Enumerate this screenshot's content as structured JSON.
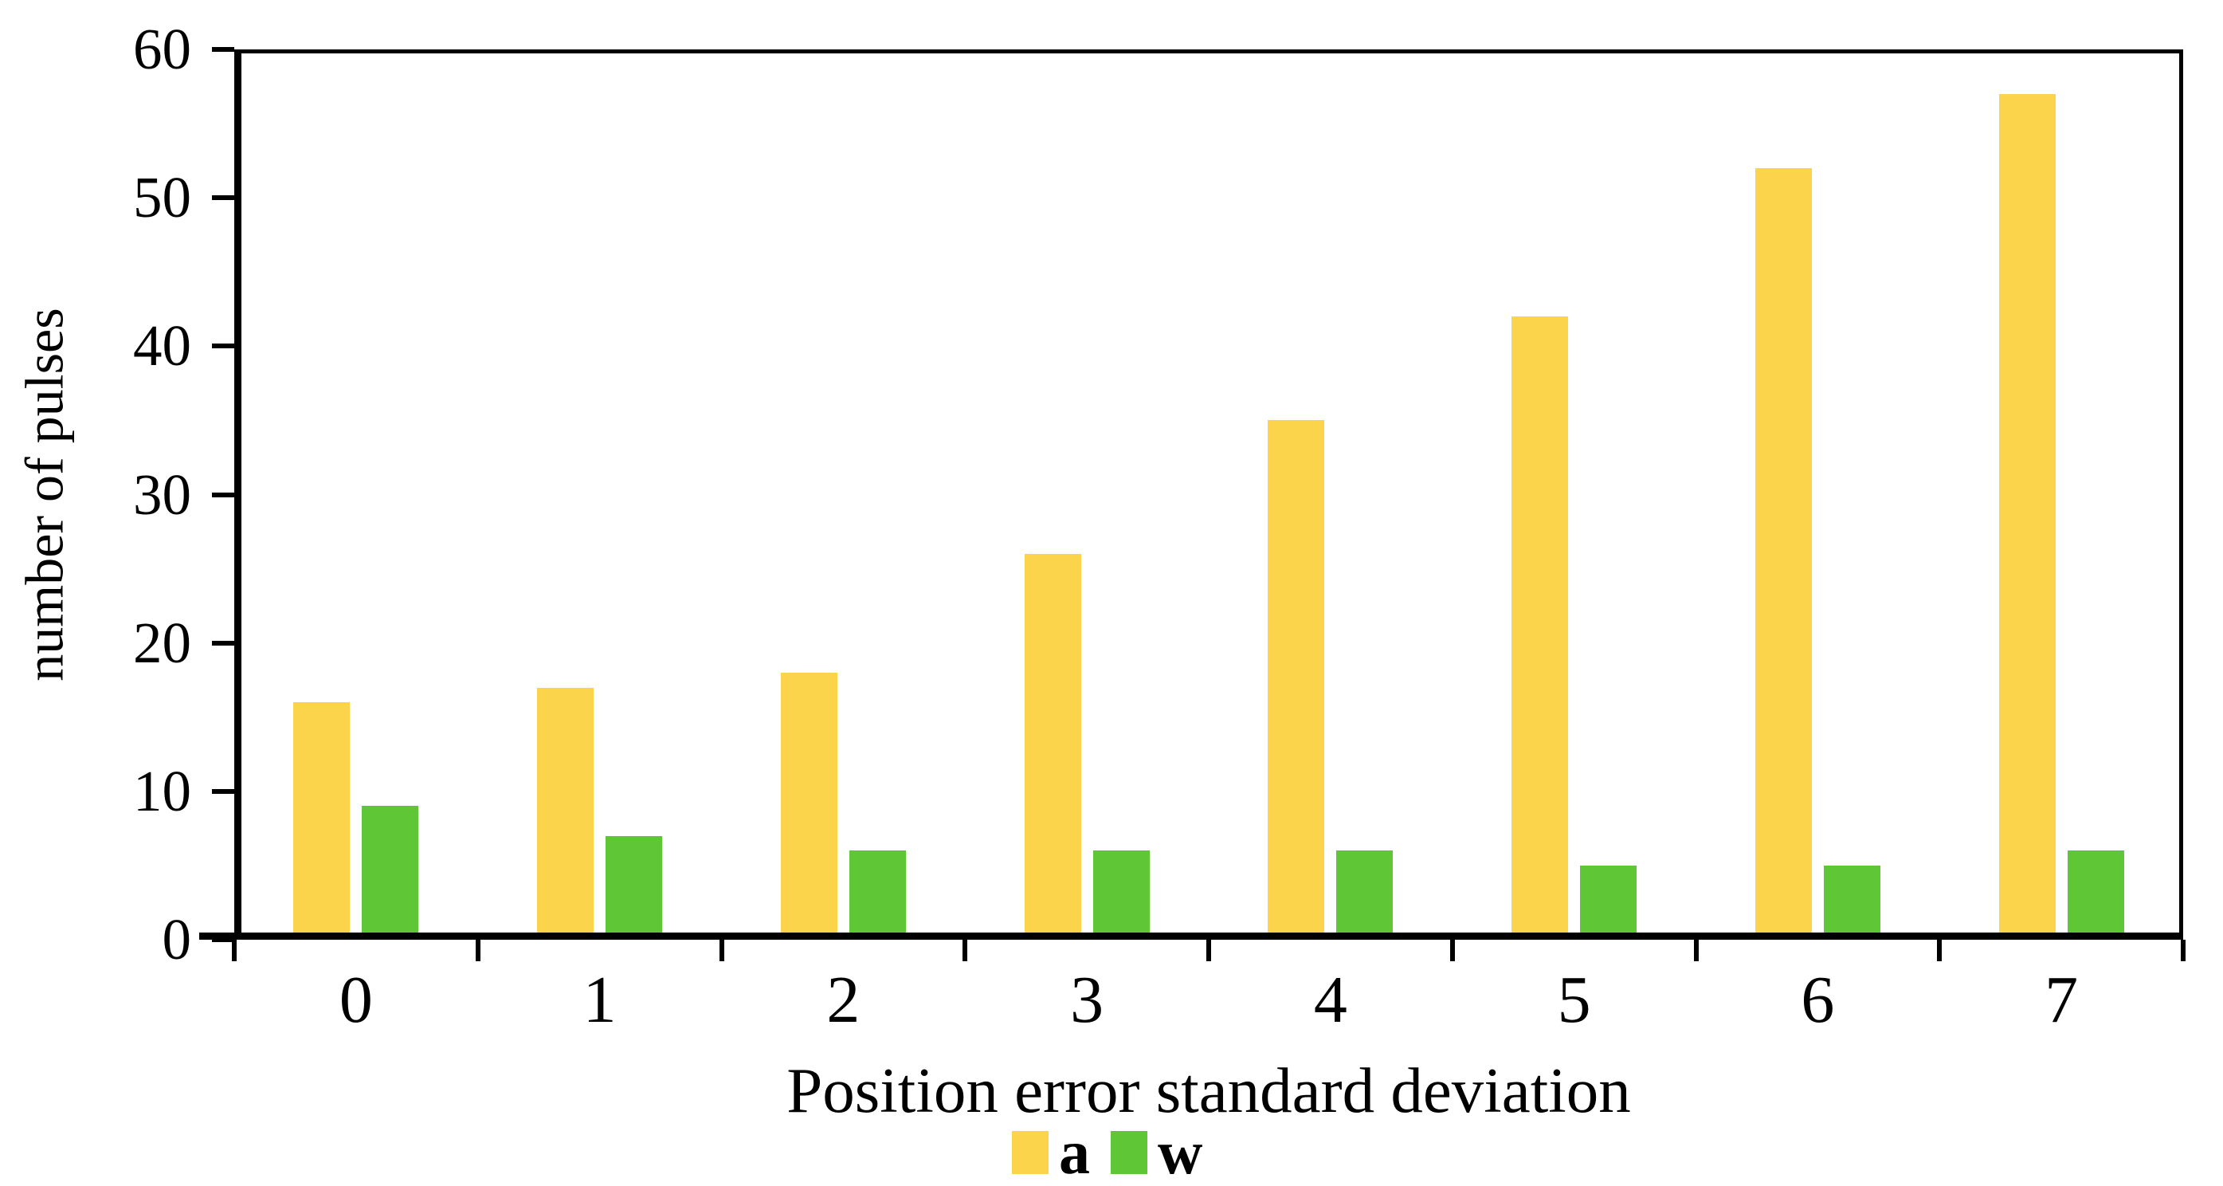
{
  "chart_data": {
    "type": "bar",
    "title": "",
    "xlabel": "Position error standard deviation",
    "ylabel": "number of pulses",
    "categories": [
      "0",
      "1",
      "2",
      "3",
      "4",
      "5",
      "6",
      "7"
    ],
    "series": [
      {
        "name": "a",
        "color": "#FBD44C",
        "values": [
          16,
          17,
          18,
          26,
          35,
          42,
          52,
          57
        ]
      },
      {
        "name": "w",
        "color": "#5FC636",
        "values": [
          9,
          7,
          6,
          6,
          6,
          5,
          5,
          6
        ]
      }
    ],
    "ylim": [
      0,
      60
    ],
    "yticks": [
      0,
      10,
      20,
      30,
      40,
      50,
      60
    ],
    "grid": false,
    "legend_position": "bottom",
    "axis_color": "#000000",
    "background": "#FFFFFF"
  }
}
